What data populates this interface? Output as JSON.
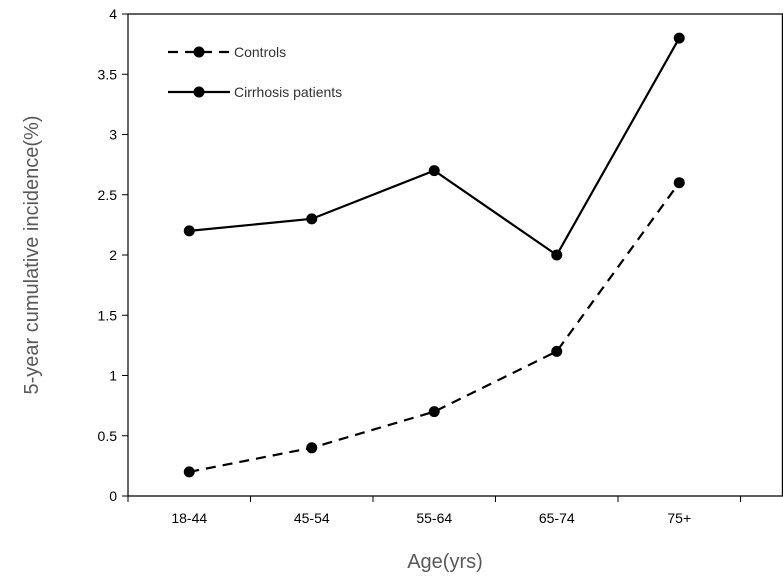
{
  "chart_data": {
    "type": "line",
    "title": "",
    "xlabel": "Age(yrs)",
    "ylabel": "5-year cumulative incidence(%)",
    "categories": [
      "18-44",
      "45-54",
      "55-64",
      "65-74",
      "75+"
    ],
    "ylim": [
      0,
      4
    ],
    "yticks": [
      "0",
      "0.5",
      "1",
      "1.5",
      "2",
      "2.5",
      "3",
      "3.5",
      "4"
    ],
    "grid": false,
    "legend_position": "top-left",
    "series": [
      {
        "name": "Controls",
        "values": [
          0.2,
          0.4,
          0.7,
          1.2,
          2.6
        ],
        "line_style": "dashed",
        "marker": "circle",
        "color": "#000000"
      },
      {
        "name": "Cirrhosis patients",
        "values": [
          2.2,
          2.3,
          2.7,
          2.0,
          3.8
        ],
        "line_style": "solid",
        "marker": "circle",
        "color": "#000000"
      }
    ]
  }
}
